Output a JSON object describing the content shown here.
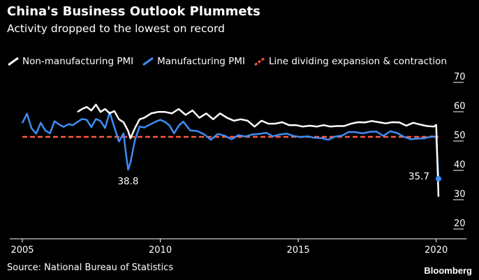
{
  "title": "China's Business Outlook Plummets",
  "subtitle": "Activity dropped to the lowest on record",
  "source": "Source: National Bureau of Statistics",
  "brand": "Bloomberg",
  "colors": {
    "non_manufacturing": "#ffffff",
    "manufacturing": "#3d8ef5",
    "threshold": "#ff5a3c",
    "axis": "#ffffff"
  },
  "chart_data": {
    "type": "line",
    "title": "China's Business Outlook Plummets",
    "subtitle": "Activity dropped to the lowest on record",
    "xlabel": "",
    "ylabel": "",
    "xlim": [
      "2005-01",
      "2020-02"
    ],
    "ylim": [
      20,
      70
    ],
    "x_ticks": [
      "2005",
      "2010",
      "2015",
      "2020"
    ],
    "y_ticks": [
      "70",
      "60",
      "50",
      "40",
      "30",
      "20"
    ],
    "legend_placement": "top-left",
    "grid": false,
    "series": [
      {
        "name": "Non-manufacturing PMI",
        "points": [
          [
            "2007-01",
            58.5
          ],
          [
            "2007-03",
            59.5
          ],
          [
            "2007-05",
            60.2
          ],
          [
            "2007-07",
            59.0
          ],
          [
            "2007-09",
            61.0
          ],
          [
            "2007-11",
            58.5
          ],
          [
            "2008-01",
            59.5
          ],
          [
            "2008-03",
            58.0
          ],
          [
            "2008-05",
            58.8
          ],
          [
            "2008-07",
            56.0
          ],
          [
            "2008-09",
            55.0
          ],
          [
            "2008-11",
            52.0
          ],
          [
            "2008-12",
            49.5
          ],
          [
            "2009-02",
            53.0
          ],
          [
            "2009-04",
            56.0
          ],
          [
            "2009-06",
            56.5
          ],
          [
            "2009-09",
            58.0
          ],
          [
            "2009-12",
            58.5
          ],
          [
            "2010-03",
            58.5
          ],
          [
            "2010-06",
            58.0
          ],
          [
            "2010-09",
            59.5
          ],
          [
            "2010-12",
            57.5
          ],
          [
            "2011-03",
            59.0
          ],
          [
            "2011-06",
            56.5
          ],
          [
            "2011-09",
            58.0
          ],
          [
            "2011-12",
            56.0
          ],
          [
            "2012-03",
            58.0
          ],
          [
            "2012-06",
            56.5
          ],
          [
            "2012-09",
            55.5
          ],
          [
            "2012-12",
            56.0
          ],
          [
            "2013-03",
            55.5
          ],
          [
            "2013-06",
            53.5
          ],
          [
            "2013-09",
            55.5
          ],
          [
            "2013-12",
            54.5
          ],
          [
            "2014-03",
            54.5
          ],
          [
            "2014-06",
            55.0
          ],
          [
            "2014-09",
            54.0
          ],
          [
            "2014-12",
            54.0
          ],
          [
            "2015-03",
            53.5
          ],
          [
            "2015-06",
            53.8
          ],
          [
            "2015-09",
            53.5
          ],
          [
            "2015-12",
            54.0
          ],
          [
            "2016-03",
            53.5
          ],
          [
            "2016-06",
            53.7
          ],
          [
            "2016-09",
            53.7
          ],
          [
            "2016-12",
            54.5
          ],
          [
            "2017-03",
            55.0
          ],
          [
            "2017-06",
            54.9
          ],
          [
            "2017-09",
            55.4
          ],
          [
            "2017-12",
            55.0
          ],
          [
            "2018-03",
            54.6
          ],
          [
            "2018-06",
            55.0
          ],
          [
            "2018-09",
            54.9
          ],
          [
            "2018-12",
            53.8
          ],
          [
            "2019-03",
            54.8
          ],
          [
            "2019-06",
            54.2
          ],
          [
            "2019-09",
            53.7
          ],
          [
            "2019-12",
            53.5
          ],
          [
            "2020-01",
            54.1
          ],
          [
            "2020-02",
            29.6
          ]
        ]
      },
      {
        "name": "Manufacturing PMI",
        "points": [
          [
            "2005-01",
            54.7
          ],
          [
            "2005-03",
            57.9
          ],
          [
            "2005-05",
            52.9
          ],
          [
            "2005-07",
            51.1
          ],
          [
            "2005-09",
            54.8
          ],
          [
            "2005-11",
            52.2
          ],
          [
            "2006-01",
            51.2
          ],
          [
            "2006-03",
            55.3
          ],
          [
            "2006-05",
            54.2
          ],
          [
            "2006-07",
            53.4
          ],
          [
            "2006-09",
            54.3
          ],
          [
            "2006-11",
            54.0
          ],
          [
            "2007-01",
            55.1
          ],
          [
            "2007-03",
            56.1
          ],
          [
            "2007-05",
            55.8
          ],
          [
            "2007-07",
            53.3
          ],
          [
            "2007-09",
            56.1
          ],
          [
            "2007-11",
            55.4
          ],
          [
            "2008-01",
            53.0
          ],
          [
            "2008-03",
            58.4
          ],
          [
            "2008-05",
            53.3
          ],
          [
            "2008-07",
            48.4
          ],
          [
            "2008-09",
            51.2
          ],
          [
            "2008-10",
            44.6
          ],
          [
            "2008-11",
            38.8
          ],
          [
            "2008-12",
            41.2
          ],
          [
            "2009-02",
            49.0
          ],
          [
            "2009-04",
            53.5
          ],
          [
            "2009-06",
            53.2
          ],
          [
            "2009-08",
            54.0
          ],
          [
            "2009-11",
            55.2
          ],
          [
            "2010-01",
            55.8
          ],
          [
            "2010-03",
            55.1
          ],
          [
            "2010-05",
            53.9
          ],
          [
            "2010-07",
            51.2
          ],
          [
            "2010-09",
            53.8
          ],
          [
            "2010-11",
            55.2
          ],
          [
            "2011-02",
            52.2
          ],
          [
            "2011-05",
            52.0
          ],
          [
            "2011-08",
            50.9
          ],
          [
            "2011-11",
            49.0
          ],
          [
            "2012-02",
            51.0
          ],
          [
            "2012-05",
            50.4
          ],
          [
            "2012-08",
            49.2
          ],
          [
            "2012-11",
            50.6
          ],
          [
            "2013-02",
            50.1
          ],
          [
            "2013-05",
            50.8
          ],
          [
            "2013-08",
            51.0
          ],
          [
            "2013-11",
            51.4
          ],
          [
            "2014-02",
            50.2
          ],
          [
            "2014-05",
            50.8
          ],
          [
            "2014-08",
            51.1
          ],
          [
            "2014-11",
            50.3
          ],
          [
            "2015-02",
            49.9
          ],
          [
            "2015-05",
            50.2
          ],
          [
            "2015-08",
            49.7
          ],
          [
            "2015-11",
            49.6
          ],
          [
            "2016-02",
            49.0
          ],
          [
            "2016-05",
            50.1
          ],
          [
            "2016-08",
            50.4
          ],
          [
            "2016-11",
            51.7
          ],
          [
            "2017-02",
            51.6
          ],
          [
            "2017-05",
            51.2
          ],
          [
            "2017-08",
            51.7
          ],
          [
            "2017-11",
            51.8
          ],
          [
            "2018-02",
            50.3
          ],
          [
            "2018-05",
            51.9
          ],
          [
            "2018-08",
            51.3
          ],
          [
            "2018-11",
            50.0
          ],
          [
            "2019-02",
            49.2
          ],
          [
            "2019-05",
            49.4
          ],
          [
            "2019-08",
            49.5
          ],
          [
            "2019-11",
            50.2
          ],
          [
            "2020-01",
            50.0
          ],
          [
            "2020-02",
            35.7
          ]
        ]
      },
      {
        "name": "Line dividing expansion & contraction",
        "points": [
          [
            "2005-01",
            50
          ],
          [
            "2020-02",
            50
          ]
        ]
      }
    ],
    "annotations": [
      {
        "x": "2008-11",
        "y": 38.8,
        "text": "38.8"
      },
      {
        "x": "2020-02",
        "y": 35.7,
        "text": "35.7"
      }
    ]
  }
}
